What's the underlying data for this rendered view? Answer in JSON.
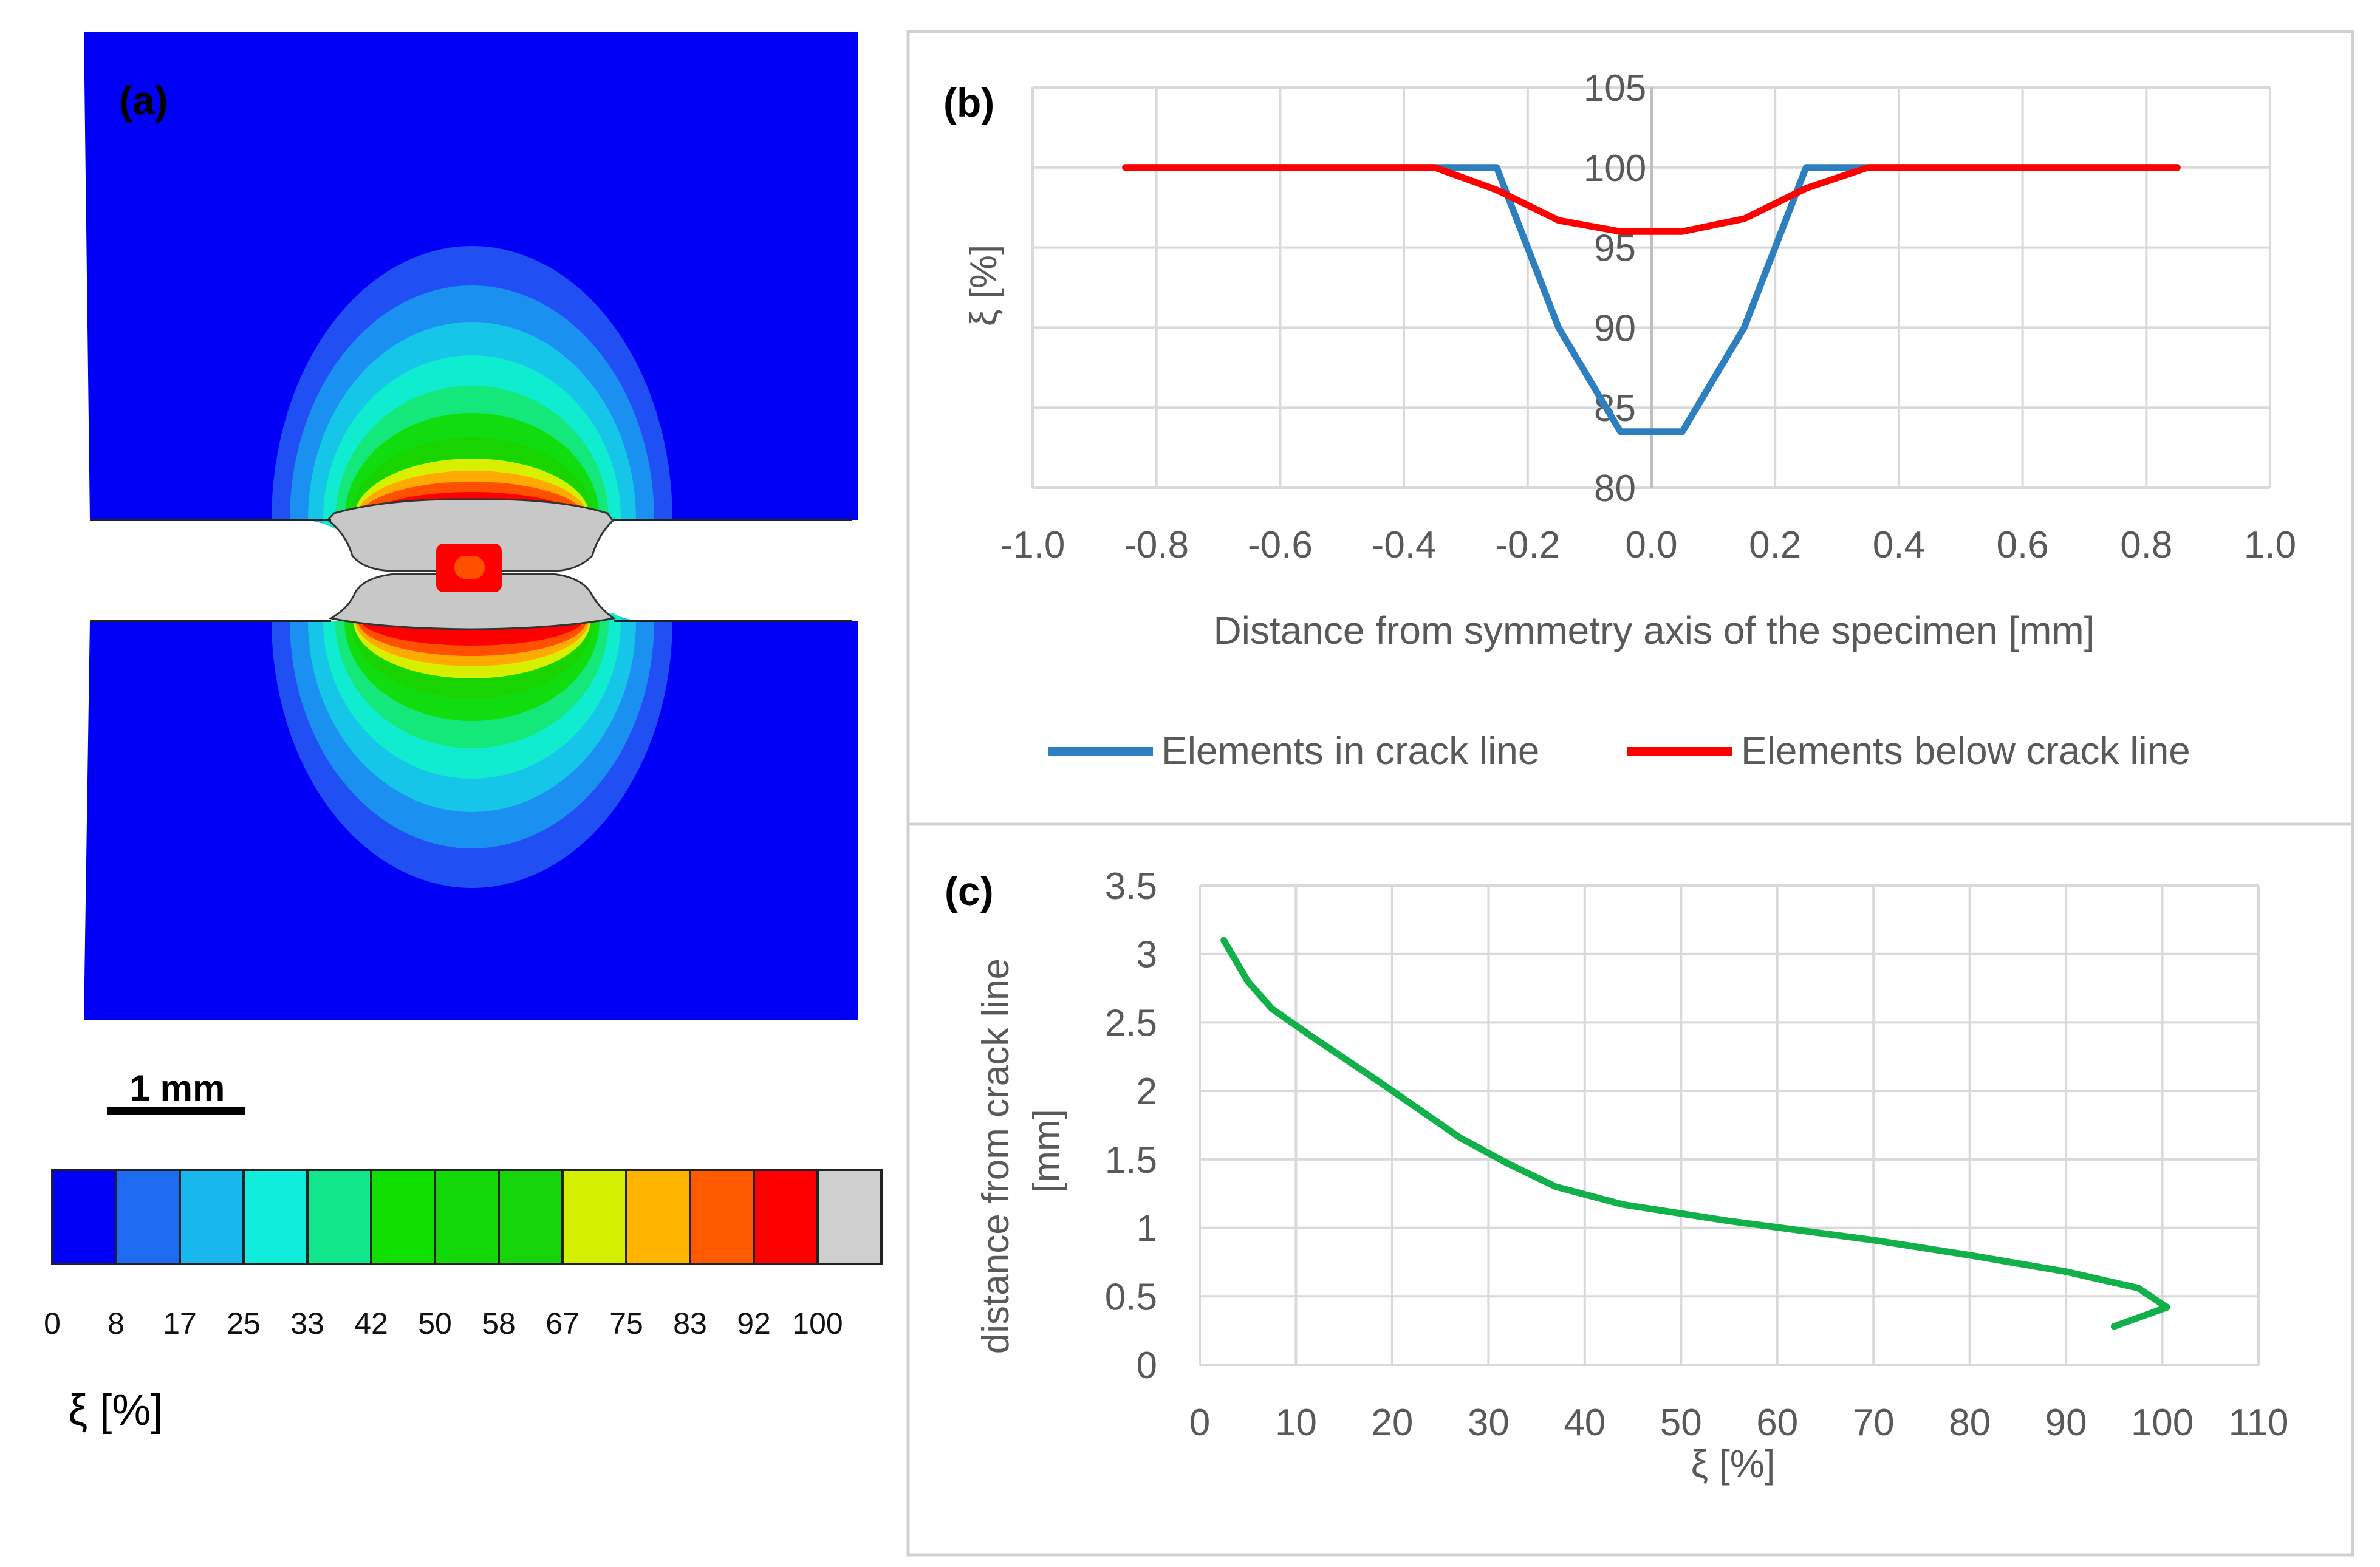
{
  "panel_a": {
    "label": "(a)",
    "scale_bar_label": "1 mm",
    "colorbar_ticks": [
      "0",
      "8",
      "17",
      "25",
      "33",
      "42",
      "50",
      "58",
      "67",
      "75",
      "83",
      "92",
      "100"
    ],
    "colorbar_colors": [
      "#0000f6",
      "#1e6af0",
      "#18b8ee",
      "#10ecdc",
      "#12e68a",
      "#10e000",
      "#12d808",
      "#16d40a",
      "#d4f000",
      "#ffb400",
      "#ff5a00",
      "#ff0000",
      "#cfcfcf"
    ],
    "colorbar_title": "ξ [%]",
    "contour_colors": {
      "background": "#0000f6",
      "c1": "#2050f4",
      "c2": "#1a90f0",
      "c3": "#16c6e8",
      "c4": "#10ecd0",
      "c5": "#14e87a",
      "c6": "#10dc10",
      "c7": "#18d400",
      "c8": "#d8f000",
      "c9": "#ffaa00",
      "c10": "#ff5000",
      "c11": "#ff0000",
      "failed": "#c8c8c8"
    }
  },
  "chart_data": [
    {
      "panel_label": "(b)",
      "type": "line",
      "xlabel": "Distance from symmetry axis of the specimen [mm]",
      "ylabel": "ξ [%]",
      "xlim": [
        -1.0,
        1.0
      ],
      "ylim": [
        80,
        105
      ],
      "x_ticks": [
        "-1.0",
        "-0.8",
        "-0.6",
        "-0.4",
        "-0.2",
        "0.0",
        "0.2",
        "0.4",
        "0.6",
        "0.8",
        "1.0"
      ],
      "y_ticks": [
        "80",
        "85",
        "90",
        "95",
        "100",
        "105"
      ],
      "grid": true,
      "legend_position": "bottom",
      "series": [
        {
          "name": "Elements in crack line",
          "color": "#2e7fbf",
          "x": [
            -0.85,
            -0.35,
            -0.25,
            -0.15,
            -0.05,
            0.05,
            0.15,
            0.25,
            0.35,
            0.85
          ],
          "y": [
            100,
            100,
            100,
            90,
            83.5,
            83.5,
            90,
            100,
            100,
            100
          ]
        },
        {
          "name": "Elements below crack line",
          "color": "#ff0000",
          "x": [
            -0.85,
            -0.35,
            -0.25,
            -0.15,
            -0.05,
            0.05,
            0.15,
            0.25,
            0.35,
            0.85
          ],
          "y": [
            100,
            100,
            98.6,
            96.7,
            96,
            96,
            96.8,
            98.7,
            100,
            100
          ]
        }
      ]
    },
    {
      "panel_label": "(c)",
      "type": "line",
      "xlabel": "ξ [%]",
      "ylabel": "distance from crack line [mm]",
      "xlim": [
        0,
        110
      ],
      "ylim": [
        0,
        3.5
      ],
      "x_ticks": [
        "0",
        "10",
        "20",
        "30",
        "40",
        "50",
        "60",
        "70",
        "80",
        "90",
        "100",
        "110"
      ],
      "y_ticks": [
        "0",
        "0.5",
        "1",
        "1.5",
        "2",
        "2.5",
        "3",
        "3.5"
      ],
      "grid": true,
      "series": [
        {
          "color": "#12b04a",
          "x": [
            95,
            100.5,
            97.5,
            90,
            80,
            70,
            55,
            44,
            37,
            32,
            27,
            19,
            12,
            7.5,
            5,
            3.5,
            2.5
          ],
          "y": [
            0.28,
            0.42,
            0.56,
            0.68,
            0.8,
            0.91,
            1.05,
            1.17,
            1.3,
            1.47,
            1.66,
            2.05,
            2.38,
            2.6,
            2.8,
            2.98,
            3.1
          ]
        }
      ]
    }
  ]
}
